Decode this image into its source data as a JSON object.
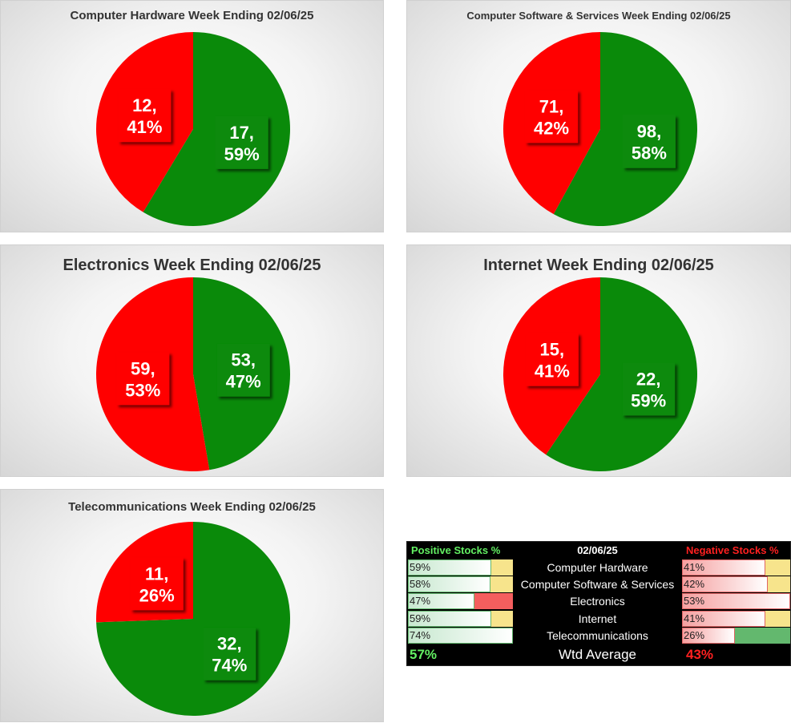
{
  "chart_data": [
    {
      "type": "pie",
      "title": "Computer Hardware Week Ending 02/06/25",
      "slices": [
        {
          "label": "17, 59%",
          "value": 17,
          "percent": 59,
          "color": "#0a8a0a"
        },
        {
          "label": "12, 41%",
          "value": 12,
          "percent": 41,
          "color": "#ff0000"
        }
      ]
    },
    {
      "type": "pie",
      "title": "Computer Software & Services Week Ending 02/06/25",
      "slices": [
        {
          "label": "98, 58%",
          "value": 98,
          "percent": 58,
          "color": "#0a8a0a"
        },
        {
          "label": "71, 42%",
          "value": 71,
          "percent": 42,
          "color": "#ff0000"
        }
      ]
    },
    {
      "type": "pie",
      "title": "Electronics Week Ending 02/06/25",
      "slices": [
        {
          "label": "53, 47%",
          "value": 53,
          "percent": 47,
          "color": "#0a8a0a"
        },
        {
          "label": "59, 53%",
          "value": 59,
          "percent": 53,
          "color": "#ff0000"
        }
      ]
    },
    {
      "type": "pie",
      "title": "Internet Week Ending 02/06/25",
      "slices": [
        {
          "label": "22, 59%",
          "value": 22,
          "percent": 59,
          "color": "#0a8a0a"
        },
        {
          "label": "15, 41%",
          "value": 15,
          "percent": 41,
          "color": "#ff0000"
        }
      ]
    },
    {
      "type": "pie",
      "title": "Telecommunications Week Ending 02/06/25",
      "slices": [
        {
          "label": "32, 74%",
          "value": 32,
          "percent": 74,
          "color": "#0a8a0a"
        },
        {
          "label": "11, 26%",
          "value": 11,
          "percent": 26,
          "color": "#ff0000"
        }
      ]
    }
  ],
  "summary": {
    "positive_header": "Positive Stocks %",
    "date_header": "02/06/25",
    "negative_header": "Negative Stocks %",
    "rows": [
      {
        "sector": "Computer Hardware",
        "positive": "59%",
        "positive_value": 59,
        "negative": "41%",
        "negative_value": 41
      },
      {
        "sector": "Computer Software & Services",
        "positive": "58%",
        "positive_value": 58,
        "negative": "42%",
        "negative_value": 42
      },
      {
        "sector": "Electronics",
        "positive": "47%",
        "positive_value": 47,
        "negative": "53%",
        "negative_value": 53
      },
      {
        "sector": "Internet",
        "positive": "59%",
        "positive_value": 59,
        "negative": "41%",
        "negative_value": 41
      },
      {
        "sector": "Telecommunications",
        "positive": "74%",
        "positive_value": 74,
        "negative": "26%",
        "negative_value": 26
      }
    ],
    "avg_positive": "57%",
    "avg_label": "Wtd Average",
    "avg_negative": "43%",
    "colors": {
      "header_positive": "#63f063",
      "header_negative": "#ff2020",
      "cell_yellow": "#f7e48c",
      "cell_red": "#f45e5e",
      "cell_green": "#63b86e"
    }
  }
}
